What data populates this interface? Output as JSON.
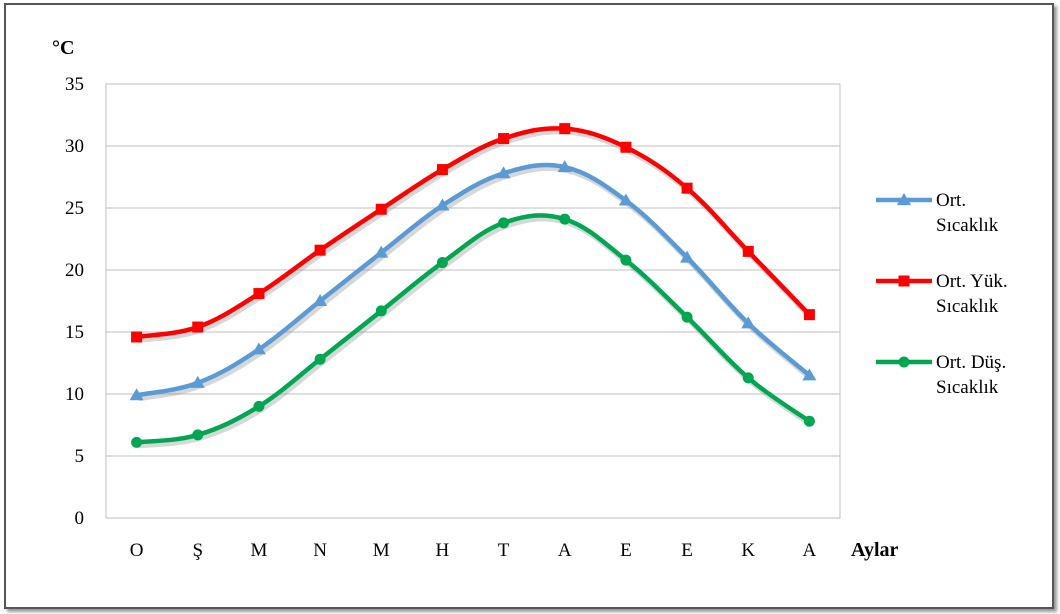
{
  "chart_data": {
    "type": "line",
    "title": "",
    "ylabel": "°C",
    "xlabel": "Aylar",
    "ylim": [
      0,
      35
    ],
    "yticks": [
      0,
      5,
      10,
      15,
      20,
      25,
      30,
      35
    ],
    "grid": true,
    "legend_position": "right",
    "categories": [
      "O",
      "Ş",
      "M",
      "N",
      "M",
      "H",
      "T",
      "A",
      "E",
      "E",
      "K",
      "A"
    ],
    "series": [
      {
        "name": "Ort. Sıcaklık",
        "name_lines": [
          "Ort.",
          "Sıcaklık"
        ],
        "color": "#5b9bd5",
        "marker": "triangle",
        "values": [
          9.9,
          10.9,
          13.6,
          17.5,
          21.4,
          25.2,
          27.8,
          28.3,
          25.6,
          21.0,
          15.7,
          11.5
        ]
      },
      {
        "name": "Ort. Yük. Sıcaklık",
        "name_lines": [
          "Ort. Yük.",
          "Sıcaklık"
        ],
        "color": "#ff0000",
        "marker": "square",
        "values": [
          14.6,
          15.4,
          18.1,
          21.6,
          24.9,
          28.1,
          30.6,
          31.4,
          29.9,
          26.6,
          21.5,
          16.4
        ]
      },
      {
        "name": "Ort. Düş. Sıcaklık",
        "name_lines": [
          "Ort. Düş.",
          "Sıcaklık"
        ],
        "color": "#00a651",
        "marker": "circle",
        "values": [
          6.1,
          6.7,
          9.0,
          12.8,
          16.7,
          20.6,
          23.8,
          24.1,
          20.8,
          16.2,
          11.3,
          7.8
        ]
      }
    ]
  }
}
